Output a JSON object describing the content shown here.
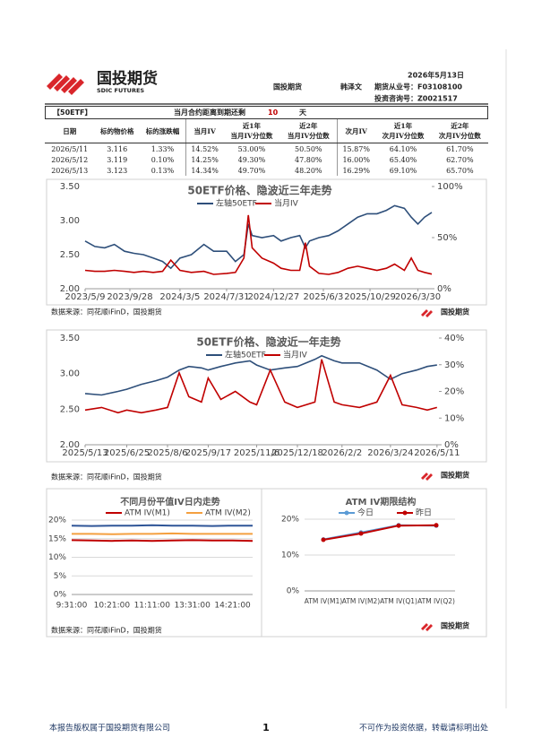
{
  "header": {
    "logo": "国投期货",
    "logo_en": "SDIC FUTURES",
    "company": "国投期货",
    "analyst": "韩泽文",
    "date": "2026年5月13日",
    "license": "期货从业号：F03108100",
    "consult": "投资咨询号：Z0021517"
  },
  "table": {
    "label": "【50ETF】",
    "expiry_text": "当月合约距离到期还剩",
    "days": "10",
    "unit": "天",
    "header": [
      "日期",
      "标的物价格",
      "标的涨跌幅",
      "当月IV",
      "近1年\n当月IV分位数",
      "近2年\n当月IV分位数",
      "次月IV",
      "近1年\n次月IV分位数",
      "近2年\n次月IV分位数"
    ],
    "rows": [
      [
        "2026/5/11",
        "3.116",
        "1.33%",
        "14.52%",
        "53.00%",
        "50.50%",
        "15.87%",
        "64.10%",
        "61.70%"
      ],
      [
        "2026/5/12",
        "3.119",
        "0.10%",
        "14.25%",
        "49.30%",
        "47.80%",
        "16.00%",
        "65.40%",
        "62.70%"
      ],
      [
        "2026/5/13",
        "3.123",
        "0.13%",
        "14.34%",
        "49.70%",
        "48.20%",
        "16.29%",
        "69.10%",
        "65.70%"
      ]
    ]
  },
  "chart_data": [
    {
      "type": "line",
      "title": "50ETF价格、隐波近三年走势",
      "source": "数据来源：同花顺iFinD，国投期货",
      "x": [
        "2023/5/9",
        "2023/6/9",
        "2023/7/10",
        "2023/8/10",
        "2023/9/11",
        "2023/10/11",
        "2023/11/10",
        "2023/12/11",
        "2024/1/10",
        "2024/2/5",
        "2024/3/5",
        "2024/4/10",
        "2024/5/20",
        "2024/6/20",
        "2024/7/31",
        "2024/8/28",
        "2024/9/24",
        "2024/10/8",
        "2024/10/20",
        "2024/11/20",
        "2024/12/27",
        "2025/1/20",
        "2025/2/20",
        "2025/3/20",
        "2025/4/7",
        "2025/4/20",
        "2025/5/20",
        "2025/6/20",
        "2025/7/20",
        "2025/8/20",
        "2025/9/20",
        "2025/10/20",
        "2025/11/20",
        "2025/12/20",
        "2026/1/15",
        "2026/2/15",
        "2026/3/9",
        "2026/3/30",
        "2026/4/20",
        "2026/5/13"
      ],
      "series": [
        {
          "name": "左轴50ETF",
          "color": "#2e4f7a",
          "values": [
            2.7,
            2.62,
            2.6,
            2.65,
            2.55,
            2.52,
            2.5,
            2.45,
            2.4,
            2.3,
            2.45,
            2.5,
            2.65,
            2.55,
            2.55,
            2.4,
            2.5,
            2.95,
            2.78,
            2.75,
            2.78,
            2.7,
            2.75,
            2.78,
            2.6,
            2.7,
            2.75,
            2.78,
            2.85,
            2.95,
            3.05,
            3.1,
            3.1,
            3.15,
            3.22,
            3.18,
            3.05,
            2.95,
            3.05,
            3.12
          ]
        },
        {
          "name": "当月IV",
          "color": "#c00000",
          "axis": "y2",
          "values": [
            18,
            17,
            17,
            18,
            17,
            16,
            17,
            16,
            17,
            28,
            18,
            16,
            17,
            14,
            15,
            16,
            30,
            72,
            40,
            30,
            25,
            20,
            18,
            18,
            45,
            22,
            15,
            14,
            16,
            20,
            22,
            20,
            18,
            20,
            24,
            18,
            30,
            18,
            16,
            14.34
          ]
        }
      ],
      "xlim": [
        "2023/5/9",
        "2026/5/13"
      ],
      "xticks": [
        "2023/5/9",
        "2023/9/28",
        "2024/3/5",
        "2024/7/31",
        "2024/12/27",
        "2025/6/3",
        "2025/10/29",
        "2026/3/30"
      ],
      "ylim": [
        2.0,
        3.5
      ],
      "yticks": [
        {
          "value": 2.0,
          "label": "2.00"
        },
        {
          "value": 2.5,
          "label": "2.50"
        },
        {
          "value": 3.0,
          "label": "3.00"
        },
        {
          "value": 3.5,
          "label": "3.50"
        }
      ],
      "y2lim": [
        0,
        100
      ],
      "y2ticks": [
        {
          "value": 0,
          "label": "0%"
        },
        {
          "value": 50,
          "label": "50%"
        },
        {
          "value": 100,
          "label": "100%"
        }
      ],
      "grid": false
    },
    {
      "type": "line",
      "title": "50ETF价格、隐波近一年走势",
      "source": "数据来源：同花顺iFinD，国投期货",
      "x": [
        "2025/5/13",
        "2025/5/30",
        "2025/6/16",
        "2025/6/25",
        "2025/7/10",
        "2025/7/25",
        "2025/8/6",
        "2025/8/18",
        "2025/8/28",
        "2025/9/10",
        "2025/9/17",
        "2025/9/30",
        "2025/10/15",
        "2025/10/30",
        "2025/11/6",
        "2025/11/20",
        "2025/12/5",
        "2025/12/18",
        "2026/1/5",
        "2026/1/12",
        "2026/1/25",
        "2026/2/2",
        "2026/2/20",
        "2026/3/10",
        "2026/3/24",
        "2026/4/5",
        "2026/4/20",
        "2026/5/1",
        "2026/5/11"
      ],
      "series": [
        {
          "name": "左轴50ETF",
          "color": "#2e4f7a",
          "values": [
            2.72,
            2.7,
            2.75,
            2.78,
            2.85,
            2.9,
            2.95,
            3.05,
            3.1,
            3.08,
            3.05,
            3.1,
            3.15,
            3.18,
            3.12,
            3.05,
            3.08,
            3.1,
            3.2,
            3.25,
            3.18,
            3.15,
            3.15,
            3.05,
            2.92,
            3.0,
            3.05,
            3.1,
            3.12
          ]
        },
        {
          "name": "当月IV",
          "color": "#c00000",
          "axis": "y2",
          "values": [
            13,
            14,
            12,
            13,
            12,
            13,
            14,
            27,
            18,
            16,
            25,
            17,
            20,
            16,
            15,
            28,
            16,
            14,
            16,
            32,
            16,
            15,
            14,
            16,
            26,
            15,
            14,
            13,
            14
          ]
        }
      ],
      "xlim": [
        "2025/5/13",
        "2026/5/13"
      ],
      "xticks": [
        "2025/5/13",
        "2025/6/25",
        "2025/8/6",
        "2025/9/17",
        "2025/11/6",
        "2025/12/18",
        "2026/2/2",
        "2026/3/24",
        "2026/5/11"
      ],
      "ylim": [
        2.0,
        3.5
      ],
      "yticks": [
        {
          "value": 2.0,
          "label": "2.00"
        },
        {
          "value": 2.5,
          "label": "2.50"
        },
        {
          "value": 3.0,
          "label": "3.00"
        },
        {
          "value": 3.5,
          "label": "3.50"
        }
      ],
      "y2lim": [
        0,
        40
      ],
      "y2ticks": [
        {
          "value": 0,
          "label": "0%"
        },
        {
          "value": 10,
          "label": "10%"
        },
        {
          "value": 20,
          "label": "20%"
        },
        {
          "value": 30,
          "label": "30%"
        },
        {
          "value": 40,
          "label": "40%"
        }
      ],
      "grid": false
    },
    {
      "type": "line",
      "title": "不同月份平值IV日内走势",
      "source": "数据来源：同花顺iFinD，国投期货",
      "categories": [
        "9:31:00",
        null,
        "10:21:00",
        null,
        "11:11:00",
        null,
        "13:31:00",
        null,
        "14:21:00",
        null
      ],
      "series": [
        {
          "color": "#2f5597",
          "values": [
            18.5,
            18.4,
            18.5,
            18.5,
            18.6,
            18.5,
            18.5,
            18.4,
            18.5,
            18.5
          ]
        },
        {
          "name": "ATM IV(M1)",
          "color": "#c00000",
          "values": [
            14.6,
            14.5,
            14.4,
            14.5,
            14.4,
            14.5,
            14.6,
            14.5,
            14.5,
            14.4
          ]
        },
        {
          "name": "ATM IV(M2)",
          "color": "#f4a040",
          "values": [
            16.3,
            16.3,
            16.2,
            16.3,
            16.3,
            16.4,
            16.3,
            16.3,
            16.3,
            16.3
          ]
        }
      ],
      "ylim": [
        0,
        20
      ],
      "yticks": [
        {
          "value": 0,
          "label": "0%"
        },
        {
          "value": 5,
          "label": "5%"
        },
        {
          "value": 10,
          "label": "10%"
        },
        {
          "value": 15,
          "label": "15%"
        },
        {
          "value": 20,
          "label": "20%"
        }
      ],
      "grid": true
    },
    {
      "type": "line",
      "title": "ATM IV期限结构",
      "markers": true,
      "categories": [
        "ATM IV(M1)",
        "ATM IV(M2)",
        "ATM IV(Q1)",
        "ATM IV(Q2)"
      ],
      "series": [
        {
          "name": "今日",
          "color": "#5b9bd5",
          "values": [
            14.34,
            16.29,
            18.3,
            18.2
          ]
        },
        {
          "name": "昨日",
          "color": "#c00000",
          "values": [
            14.25,
            16.0,
            18.2,
            18.3
          ]
        }
      ],
      "ylim": [
        0,
        20
      ],
      "yticks": [
        {
          "value": 0,
          "label": "0%"
        },
        {
          "value": 10,
          "label": "10%"
        },
        {
          "value": 20,
          "label": "20%"
        }
      ],
      "grid": true
    }
  ],
  "footer": {
    "copyright": "本报告版权属于国投期货有限公司",
    "page": "1",
    "disclaimer": "不可作为投资依据，转载请标明出处"
  }
}
